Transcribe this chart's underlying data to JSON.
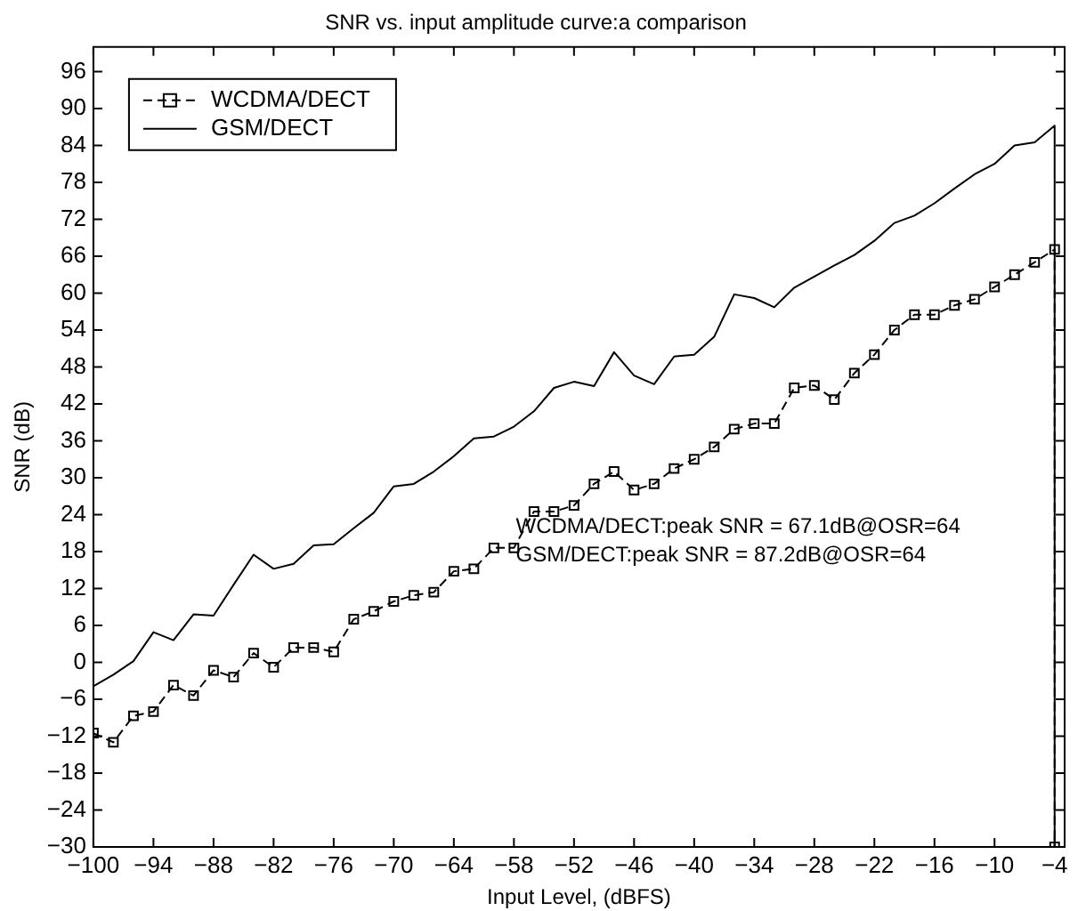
{
  "chart_data": {
    "type": "line",
    "title": "SNR vs. input amplitude curve:a comparison",
    "xlabel": "Input Level, (dBFS)",
    "ylabel": "SNR (dB)",
    "x": [
      -100,
      -98,
      -96,
      -94,
      -92,
      -90,
      -88,
      -86,
      -84,
      -82,
      -80,
      -78,
      -76,
      -74,
      -72,
      -70,
      -68,
      -66,
      -64,
      -62,
      -60,
      -58,
      -56,
      -54,
      -52,
      -50,
      -48,
      -46,
      -44,
      -42,
      -40,
      -38,
      -36,
      -34,
      -32,
      -30,
      -28,
      -26,
      -24,
      -22,
      -20,
      -18,
      -16,
      -14,
      -12,
      -10,
      -8,
      -6,
      -4,
      -4
    ],
    "series": [
      {
        "name": "WCDMA/DECT",
        "color": "#000000",
        "marker": "square",
        "line_style": "dashed",
        "values": [
          -11.5,
          -13,
          -8.7,
          -8,
          -3.7,
          -5.4,
          -1.3,
          -2.4,
          1.5,
          -0.8,
          2.4,
          2.4,
          1.7,
          7,
          8.3,
          9.9,
          10.9,
          11.4,
          14.8,
          15.2,
          18.6,
          18.6,
          24.5,
          24.5,
          25.5,
          29,
          31,
          28,
          29,
          31.5,
          33,
          35,
          37.9,
          38.8,
          38.8,
          44.6,
          45,
          42.7,
          47,
          50,
          54,
          56.5,
          56.5,
          58,
          59,
          61,
          63,
          65,
          67.1,
          -30
        ]
      },
      {
        "name": "GSM/DECT",
        "color": "#000000",
        "marker": "none",
        "line_style": "solid",
        "values": [
          -3.9,
          -2,
          0.2,
          4.9,
          3.6,
          7.8,
          7.6,
          12.6,
          17.5,
          15.2,
          16,
          19,
          19.2,
          21.8,
          24.3,
          28.6,
          29,
          31,
          33.5,
          36.4,
          36.7,
          38.3,
          40.8,
          44.6,
          45.6,
          44.9,
          50.4,
          46.6,
          45.2,
          49.7,
          50,
          52.9,
          59.8,
          59.2,
          57.7,
          60.9,
          62.7,
          64.5,
          66.2,
          68.5,
          71.4,
          72.6,
          74.6,
          77,
          79.3,
          81,
          84,
          84.5,
          87.2,
          -30
        ]
      }
    ],
    "xlim": [
      -100,
      -3
    ],
    "xticks": [
      -100,
      -94,
      -88,
      -82,
      -76,
      -70,
      -64,
      -58,
      -52,
      -46,
      -40,
      -34,
      -28,
      -22,
      -16,
      -10,
      -4
    ],
    "ylim": [
      -30,
      100
    ],
    "yticks": [
      -30,
      -24,
      -18,
      -12,
      -6,
      0,
      6,
      12,
      18,
      24,
      30,
      36,
      42,
      48,
      54,
      60,
      66,
      72,
      78,
      84,
      90,
      96
    ],
    "grid": false,
    "legend": "top left",
    "annotations": [
      "WCDMA/DECT:peak SNR = 67.1dB@OSR=64",
      "GSM/DECT:peak SNR = 87.2dB@OSR=64"
    ]
  }
}
